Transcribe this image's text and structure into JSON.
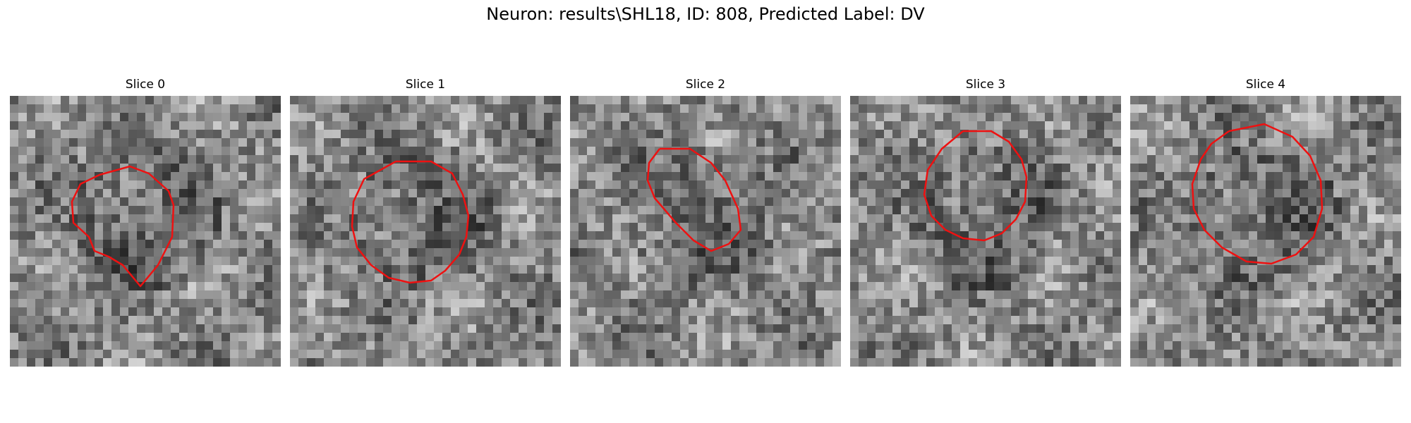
{
  "figure": {
    "title": "Neuron: results\\SHL18, ID: 808, Predicted Label: DV"
  },
  "colors": {
    "contour": "#ee1111",
    "background": "#ffffff"
  },
  "slices": [
    {
      "label": "Slice 0"
    },
    {
      "label": "Slice 1"
    },
    {
      "label": "Slice 2"
    },
    {
      "label": "Slice 3"
    },
    {
      "label": "Slice 4"
    }
  ]
}
